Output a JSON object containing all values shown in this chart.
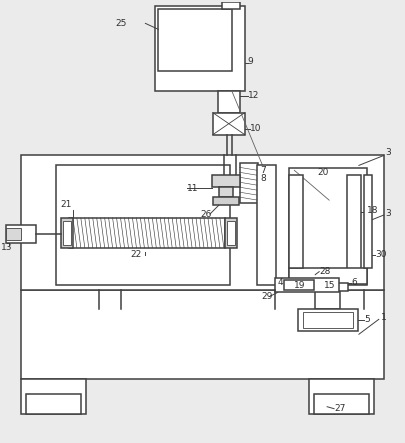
{
  "bg_color": "#ebebeb",
  "line_color": "#404040",
  "lw": 1.1,
  "fig_width": 4.05,
  "fig_height": 4.43
}
